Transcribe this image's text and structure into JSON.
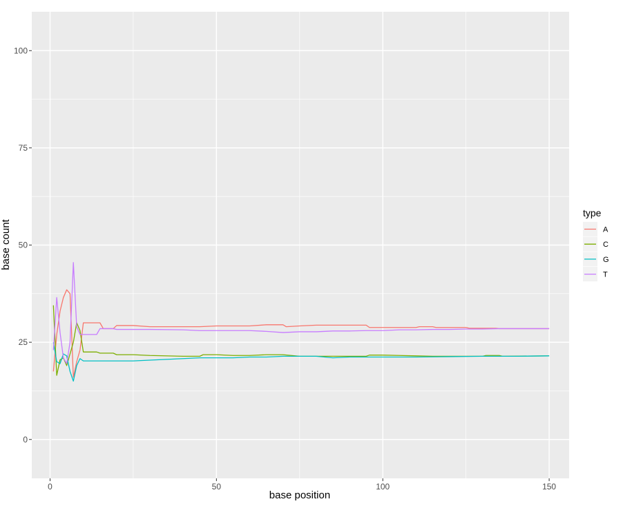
{
  "chart_data": {
    "type": "line",
    "xlabel": "base position",
    "ylabel": "base count",
    "xlim": [
      -5.5,
      156
    ],
    "ylim": [
      -10,
      110
    ],
    "x_ticks": [
      0,
      50,
      100,
      150
    ],
    "x_tick_labels": [
      "0",
      "50",
      "100",
      "150"
    ],
    "y_ticks": [
      0,
      25,
      50,
      75,
      100
    ],
    "y_tick_labels": [
      "0",
      "25",
      "50",
      "75",
      "100"
    ],
    "grid": true,
    "legend": {
      "title": "type",
      "position": "right"
    },
    "series": [
      {
        "name": "A",
        "color": "#F8766D",
        "points": [
          [
            1,
            17.5
          ],
          [
            2,
            27
          ],
          [
            3,
            33
          ],
          [
            4,
            36.5
          ],
          [
            5,
            38.5
          ],
          [
            6,
            37.5
          ],
          [
            7,
            16
          ],
          [
            8,
            20
          ],
          [
            9,
            23
          ],
          [
            10,
            30
          ],
          [
            15,
            30
          ],
          [
            16,
            28.5
          ],
          [
            19,
            28.5
          ],
          [
            20,
            29.3
          ],
          [
            25,
            29.3
          ],
          [
            30,
            29
          ],
          [
            40,
            29
          ],
          [
            45,
            29
          ],
          [
            50,
            29.2
          ],
          [
            60,
            29.2
          ],
          [
            65,
            29.5
          ],
          [
            70,
            29.5
          ],
          [
            71,
            29
          ],
          [
            75,
            29.2
          ],
          [
            80,
            29.4
          ],
          [
            85,
            29.4
          ],
          [
            90,
            29.4
          ],
          [
            95,
            29.4
          ],
          [
            96,
            28.8
          ],
          [
            100,
            28.8
          ],
          [
            110,
            28.8
          ],
          [
            111,
            29
          ],
          [
            115,
            29
          ],
          [
            116,
            28.8
          ],
          [
            125,
            28.8
          ],
          [
            126,
            28.6
          ],
          [
            134,
            28.6
          ],
          [
            135,
            28.5
          ],
          [
            150,
            28.5
          ]
        ]
      },
      {
        "name": "C",
        "color": "#7CAE00",
        "points": [
          [
            1,
            34.5
          ],
          [
            2,
            16.5
          ],
          [
            3,
            20.5
          ],
          [
            4,
            21
          ],
          [
            5,
            19
          ],
          [
            6,
            22
          ],
          [
            7,
            25
          ],
          [
            8,
            30
          ],
          [
            9,
            28
          ],
          [
            10,
            22.5
          ],
          [
            14,
            22.5
          ],
          [
            15,
            22.2
          ],
          [
            19,
            22.2
          ],
          [
            20,
            21.8
          ],
          [
            25,
            21.8
          ],
          [
            30,
            21.6
          ],
          [
            40,
            21.4
          ],
          [
            45,
            21.4
          ],
          [
            46,
            21.8
          ],
          [
            50,
            21.8
          ],
          [
            55,
            21.6
          ],
          [
            60,
            21.6
          ],
          [
            65,
            21.8
          ],
          [
            70,
            21.8
          ],
          [
            75,
            21.4
          ],
          [
            85,
            21.4
          ],
          [
            90,
            21.4
          ],
          [
            95,
            21.4
          ],
          [
            96,
            21.7
          ],
          [
            100,
            21.7
          ],
          [
            105,
            21.6
          ],
          [
            110,
            21.5
          ],
          [
            115,
            21.4
          ],
          [
            130,
            21.4
          ],
          [
            131,
            21.6
          ],
          [
            135,
            21.6
          ],
          [
            136,
            21.4
          ],
          [
            150,
            21.5
          ]
        ]
      },
      {
        "name": "G",
        "color": "#00BFC4",
        "points": [
          [
            1,
            25
          ],
          [
            2,
            20
          ],
          [
            3,
            19.5
          ],
          [
            4,
            22
          ],
          [
            5,
            21.5
          ],
          [
            6,
            17.5
          ],
          [
            7,
            15
          ],
          [
            8,
            19
          ],
          [
            9,
            20.8
          ],
          [
            10,
            20.2
          ],
          [
            15,
            20.2
          ],
          [
            20,
            20.2
          ],
          [
            25,
            20.2
          ],
          [
            30,
            20.4
          ],
          [
            35,
            20.6
          ],
          [
            40,
            20.8
          ],
          [
            45,
            21
          ],
          [
            50,
            21
          ],
          [
            55,
            21
          ],
          [
            60,
            21.2
          ],
          [
            65,
            21.2
          ],
          [
            70,
            21.4
          ],
          [
            75,
            21.4
          ],
          [
            80,
            21.4
          ],
          [
            85,
            21
          ],
          [
            90,
            21.2
          ],
          [
            95,
            21.2
          ],
          [
            100,
            21.2
          ],
          [
            110,
            21.2
          ],
          [
            120,
            21.3
          ],
          [
            130,
            21.4
          ],
          [
            140,
            21.4
          ],
          [
            150,
            21.5
          ]
        ]
      },
      {
        "name": "T",
        "color": "#C77CFF",
        "points": [
          [
            1,
            23
          ],
          [
            2,
            36.5
          ],
          [
            3,
            27.5
          ],
          [
            4,
            21
          ],
          [
            5,
            19.5
          ],
          [
            6,
            25
          ],
          [
            7,
            45.5
          ],
          [
            8,
            29
          ],
          [
            9,
            27
          ],
          [
            10,
            27
          ],
          [
            14,
            27
          ],
          [
            15,
            28.5
          ],
          [
            19,
            28.5
          ],
          [
            20,
            28.3
          ],
          [
            25,
            28.3
          ],
          [
            30,
            28.3
          ],
          [
            40,
            28.2
          ],
          [
            45,
            28
          ],
          [
            50,
            28
          ],
          [
            55,
            28
          ],
          [
            60,
            28
          ],
          [
            65,
            27.8
          ],
          [
            70,
            27.5
          ],
          [
            75,
            27.7
          ],
          [
            80,
            27.7
          ],
          [
            85,
            27.9
          ],
          [
            90,
            27.9
          ],
          [
            95,
            28
          ],
          [
            100,
            28
          ],
          [
            105,
            28.2
          ],
          [
            110,
            28.2
          ],
          [
            115,
            28.3
          ],
          [
            120,
            28.3
          ],
          [
            125,
            28.4
          ],
          [
            130,
            28.4
          ],
          [
            135,
            28.5
          ],
          [
            150,
            28.5
          ]
        ]
      }
    ]
  }
}
